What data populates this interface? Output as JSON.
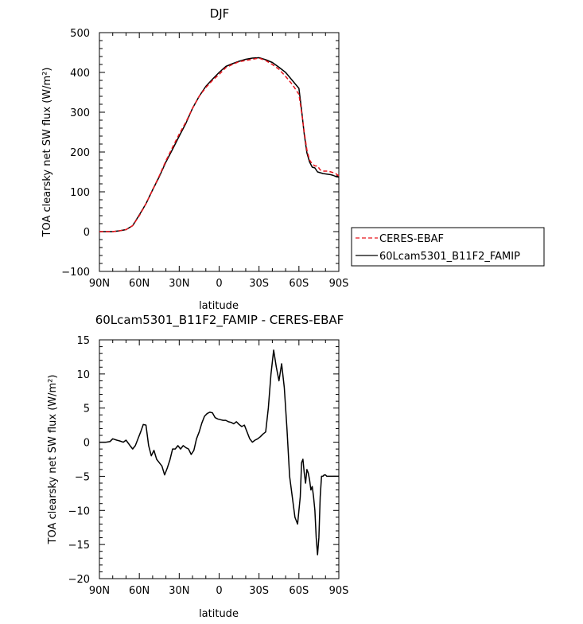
{
  "chart_data": [
    {
      "type": "line",
      "title": "DJF",
      "xlabel": "latitude",
      "ylabel": "TOA clearsky net SW flux (W/m²)",
      "xlim": [
        -90,
        90
      ],
      "ylim": [
        -100,
        500
      ],
      "xticks": [
        "90N",
        "60N",
        "30N",
        "0",
        "30S",
        "60S",
        "90S"
      ],
      "yticks": [
        "-100",
        "0",
        "100",
        "200",
        "300",
        "400",
        "500"
      ],
      "legend_position": "right",
      "x": [
        -90,
        -85,
        -80,
        -75,
        -70,
        -65,
        -60,
        -55,
        -50,
        -45,
        -40,
        -35,
        -30,
        -25,
        -20,
        -15,
        -10,
        -5,
        0,
        5,
        10,
        15,
        20,
        25,
        30,
        35,
        40,
        45,
        50,
        55,
        60,
        62,
        64,
        66,
        68,
        70,
        72,
        74,
        76,
        78,
        80,
        82,
        84,
        86,
        88,
        90
      ],
      "series": [
        {
          "name": "CERES-EBAF",
          "color": "#e8141c",
          "dash": "dashed",
          "values": [
            0,
            0,
            0,
            2,
            5,
            15,
            40,
            70,
            105,
            140,
            178,
            212,
            245,
            275,
            310,
            340,
            362,
            380,
            395,
            412,
            420,
            427,
            430,
            433,
            436,
            430,
            420,
            408,
            390,
            370,
            345,
            300,
            250,
            205,
            180,
            170,
            165,
            165,
            155,
            152,
            152,
            152,
            150,
            148,
            145,
            140
          ]
        },
        {
          "name": "60Lcam5301_B11F2_FAMIP",
          "color": "#000000",
          "dash": "solid",
          "values": [
            0,
            0,
            0,
            2,
            5,
            15,
            42,
            70,
            105,
            138,
            175,
            207,
            240,
            272,
            310,
            340,
            365,
            383,
            400,
            415,
            422,
            428,
            433,
            436,
            437,
            432,
            425,
            413,
            400,
            380,
            360,
            305,
            245,
            198,
            175,
            162,
            160,
            150,
            148,
            146,
            145,
            144,
            143,
            141,
            138,
            137
          ]
        }
      ]
    },
    {
      "type": "line",
      "title": "60Lcam5301_B11F2_FAMIP - CERES-EBAF",
      "xlabel": "latitude",
      "ylabel": "TOA clearsky net SW flux (W/m²)",
      "xlim": [
        -90,
        90
      ],
      "ylim": [
        -20,
        15
      ],
      "xticks": [
        "90N",
        "60N",
        "30N",
        "0",
        "30S",
        "60S",
        "90S"
      ],
      "yticks": [
        "-20",
        "-15",
        "-10",
        "-5",
        "0",
        "5",
        "10",
        "15"
      ],
      "x": [
        -90,
        -85,
        -82,
        -80,
        -77,
        -75,
        -72,
        -70,
        -67,
        -65,
        -63,
        -61,
        -59,
        -57,
        -55,
        -53,
        -51,
        -49,
        -47,
        -45,
        -43,
        -41,
        -39,
        -37,
        -35,
        -33,
        -31,
        -29,
        -27,
        -25,
        -23,
        -21,
        -19,
        -17,
        -15,
        -13,
        -11,
        -9,
        -7,
        -5,
        -3,
        -1,
        1,
        3,
        5,
        7,
        9,
        11,
        13,
        15,
        17,
        19,
        21,
        23,
        25,
        27,
        29,
        31,
        33,
        35,
        37,
        39,
        41,
        43,
        45,
        47,
        49,
        51,
        53,
        55,
        57,
        59,
        61,
        62,
        63,
        64,
        65,
        66,
        67,
        68,
        69,
        70,
        71,
        72,
        73,
        74,
        75,
        76,
        77,
        78,
        79,
        80,
        81,
        82,
        83,
        84,
        85,
        86,
        87,
        88,
        89,
        90
      ],
      "series": [
        {
          "name": "",
          "color": "#000000",
          "dash": "solid",
          "values": [
            0,
            0,
            0.1,
            0.5,
            0.3,
            0.2,
            0,
            0.3,
            -0.5,
            -1,
            -0.5,
            0.5,
            1.5,
            2.6,
            2.5,
            -0.5,
            -2,
            -1.2,
            -2.5,
            -3,
            -3.5,
            -4.8,
            -3.8,
            -2.6,
            -1,
            -1,
            -0.5,
            -1,
            -0.5,
            -0.8,
            -1,
            -1.8,
            -1.2,
            0.5,
            1.5,
            2.8,
            3.8,
            4.2,
            4.4,
            4.3,
            3.6,
            3.4,
            3.3,
            3.2,
            3.2,
            3,
            2.9,
            2.7,
            3,
            2.6,
            2.3,
            2.5,
            1.5,
            0.5,
            0,
            0.3,
            0.5,
            0.8,
            1.2,
            1.5,
            5,
            10,
            13.5,
            11,
            9,
            11.5,
            8,
            2,
            -5,
            -8,
            -11,
            -12,
            -8,
            -3,
            -2.5,
            -4.5,
            -6,
            -4,
            -4.5,
            -5.5,
            -7,
            -6.5,
            -8,
            -10,
            -14,
            -16.5,
            -14,
            -8,
            -5,
            -5,
            -4.8,
            -4.8,
            -5,
            -5,
            -5,
            -5,
            -5,
            -5,
            -5,
            -5,
            -5,
            -5
          ]
        }
      ]
    }
  ]
}
